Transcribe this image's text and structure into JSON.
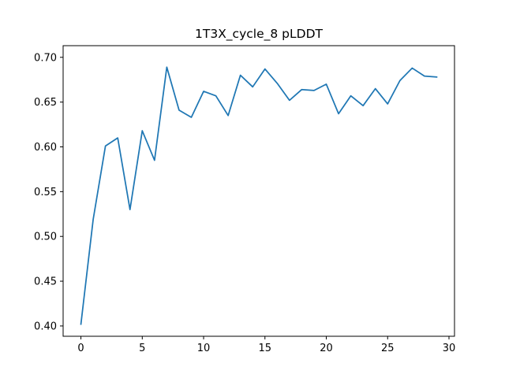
{
  "chart_data": {
    "type": "line",
    "title": "1T3X_cycle_8 pLDDT",
    "xlabel": "",
    "ylabel": "",
    "xlim": [
      -1.45,
      30.45
    ],
    "ylim": [
      0.3885,
      0.713
    ],
    "xticks": [
      0,
      5,
      10,
      15,
      20,
      25,
      30
    ],
    "xtick_labels": [
      "0",
      "5",
      "10",
      "15",
      "20",
      "25",
      "30"
    ],
    "yticks": [
      0.4,
      0.45,
      0.5,
      0.55,
      0.6,
      0.65,
      0.7
    ],
    "ytick_labels": [
      "0.40",
      "0.45",
      "0.50",
      "0.55",
      "0.60",
      "0.65",
      "0.70"
    ],
    "grid": false,
    "legend": "none",
    "series": [
      {
        "color": "#1f77b4",
        "x": [
          0,
          1,
          2,
          3,
          4,
          5,
          6,
          7,
          8,
          9,
          10,
          11,
          12,
          13,
          14,
          15,
          16,
          17,
          18,
          19,
          20,
          21,
          22,
          23,
          24,
          25,
          26,
          27,
          28,
          29
        ],
        "y": [
          0.402,
          0.519,
          0.601,
          0.61,
          0.53,
          0.618,
          0.585,
          0.689,
          0.641,
          0.633,
          0.662,
          0.657,
          0.635,
          0.68,
          0.667,
          0.687,
          0.671,
          0.652,
          0.664,
          0.663,
          0.67,
          0.637,
          0.657,
          0.646,
          0.665,
          0.648,
          0.674,
          0.688,
          0.679,
          0.678
        ]
      }
    ]
  }
}
